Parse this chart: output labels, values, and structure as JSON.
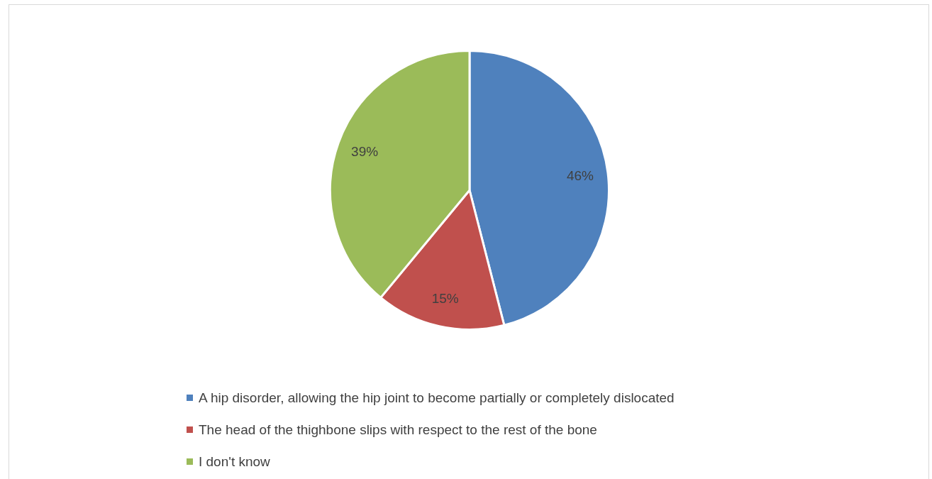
{
  "chart_data": {
    "type": "pie",
    "categories": [
      "A hip disorder, allowing the hip joint to become partially or completely dislocated",
      "The head of the thighbone slips with respect to the rest of the bone",
      "I don't know"
    ],
    "values": [
      46,
      15,
      39
    ],
    "colors": [
      "#4f81bd",
      "#c0504d",
      "#9bbb59"
    ],
    "value_labels": [
      "46%",
      "15%",
      "39%"
    ],
    "legend": "bottom"
  }
}
